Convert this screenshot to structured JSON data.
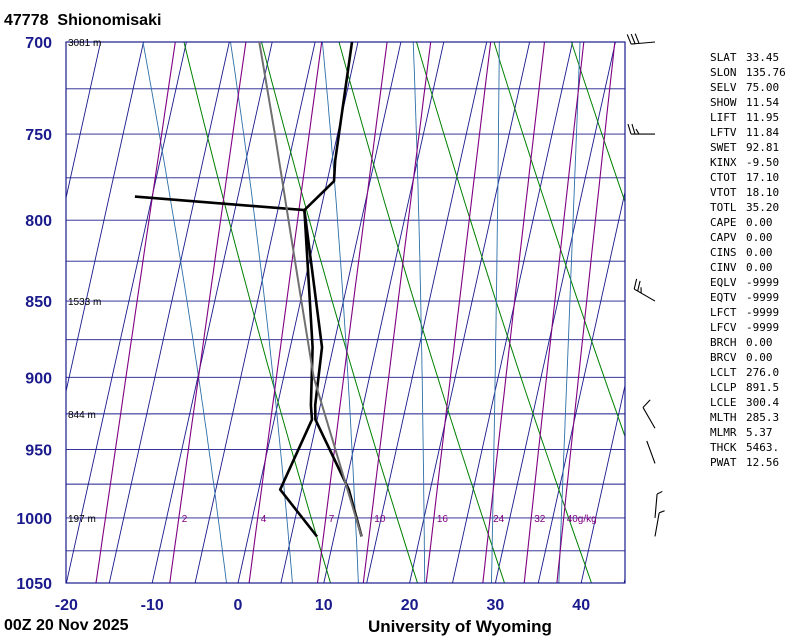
{
  "station": {
    "id": "47778",
    "name": "Shionomisaki"
  },
  "footer": {
    "time": "00Z 20 Nov 2025",
    "source": "University of Wyoming"
  },
  "indices": [
    {
      "name": "SLAT",
      "value": "33.45"
    },
    {
      "name": "SLON",
      "value": "135.76"
    },
    {
      "name": "SELV",
      "value": "75.00"
    },
    {
      "name": "SHOW",
      "value": "11.54"
    },
    {
      "name": "LIFT",
      "value": "11.95"
    },
    {
      "name": "LFTV",
      "value": "11.84"
    },
    {
      "name": "SWET",
      "value": "92.81"
    },
    {
      "name": "KINX",
      "value": "-9.50"
    },
    {
      "name": "CTOT",
      "value": "17.10"
    },
    {
      "name": "VTOT",
      "value": "18.10"
    },
    {
      "name": "TOTL",
      "value": "35.20"
    },
    {
      "name": "CAPE",
      "value": "0.00"
    },
    {
      "name": "CAPV",
      "value": "0.00"
    },
    {
      "name": "CINS",
      "value": "0.00"
    },
    {
      "name": "CINV",
      "value": "0.00"
    },
    {
      "name": "EQLV",
      "value": "-9999"
    },
    {
      "name": "EQTV",
      "value": "-9999"
    },
    {
      "name": "LFCT",
      "value": "-9999"
    },
    {
      "name": "LFCV",
      "value": "-9999"
    },
    {
      "name": "BRCH",
      "value": "0.00"
    },
    {
      "name": "BRCV",
      "value": "0.00"
    },
    {
      "name": "LCLT",
      "value": "276.0"
    },
    {
      "name": "LCLP",
      "value": "891.5"
    },
    {
      "name": "LCLE",
      "value": "300.4"
    },
    {
      "name": "MLTH",
      "value": "285.3"
    },
    {
      "name": "MLMR",
      "value": "5.37"
    },
    {
      "name": "THCK",
      "value": "5463."
    },
    {
      "name": "PWAT",
      "value": "12.56"
    }
  ],
  "chart_data": {
    "type": "line",
    "chart_kind": "skew-T log-p diagram",
    "y_scale": "log (inverted)",
    "pressure_range_hpa": [
      1050,
      700
    ],
    "temperature_range_c": [
      -20,
      45
    ],
    "pressure_ticks": [
      "700",
      "750",
      "800",
      "850",
      "900",
      "950",
      "1000",
      "1050"
    ],
    "temperature_ticks": [
      "-20",
      "-10",
      "0",
      "10",
      "20",
      "30",
      "40"
    ],
    "height_labels": [
      {
        "p": 700,
        "text": "3081 m"
      },
      {
        "p": 850,
        "text": "1533 m"
      },
      {
        "p": 925,
        "text": "844 m"
      },
      {
        "p": 1000,
        "text": "197 m"
      }
    ],
    "mixing_ratio_labels": [
      "2",
      "4",
      "7",
      "10",
      "16",
      "24",
      "32",
      "40g/kg"
    ],
    "mixing_ratio_values": [
      1,
      2,
      4,
      7,
      10,
      16,
      24,
      32,
      40
    ],
    "dry_adiabats_k": [
      280,
      290,
      300,
      310,
      320,
      330,
      340,
      350,
      360,
      370,
      380
    ],
    "moist_adiabats_c": [
      -4,
      4,
      12,
      20,
      28,
      36
    ],
    "colors": {
      "grid": "#1a1a8c",
      "dry_adiabat": "#008000",
      "moist_adiabat": "#2e6fa8",
      "mixing_ratio": "#800080",
      "profile": "#000000",
      "parcel": "#707070"
    },
    "series": [
      {
        "id": "temperature",
        "points": [
          [
            1014,
            13.2
          ],
          [
            979,
            10.5
          ],
          [
            929,
            4.8
          ],
          [
            919,
            4.4
          ],
          [
            880,
            3.7
          ],
          [
            794,
            -1.9
          ],
          [
            777,
            0.8
          ],
          [
            765,
            0.4
          ],
          [
            700,
            -0.7
          ]
        ]
      },
      {
        "id": "dewpoint",
        "points": [
          [
            1014,
            8.0
          ],
          [
            979,
            2.5
          ],
          [
            929,
            4.4
          ],
          [
            919,
            3.9
          ],
          [
            880,
            2.6
          ],
          [
            794,
            -1.9
          ],
          [
            786,
            -22.0
          ]
        ]
      },
      {
        "id": "parcel",
        "points": [
          [
            1014,
            13.2
          ],
          [
            900,
            3.5
          ],
          [
            850,
            0.1
          ],
          [
            800,
            -3.5
          ],
          [
            750,
            -7.3
          ],
          [
            700,
            -11.5
          ]
        ]
      }
    ],
    "wind_barbs": [
      {
        "p": 700,
        "dir": 265,
        "spd": 30
      },
      {
        "p": 750,
        "dir": 270,
        "spd": 25
      },
      {
        "p": 850,
        "dir": 300,
        "spd": 25
      },
      {
        "p": 935,
        "dir": 330,
        "spd": 10
      },
      {
        "p": 960,
        "dir": 340,
        "spd": 0
      },
      {
        "p": 1000,
        "dir": 5,
        "spd": 5
      },
      {
        "p": 1014,
        "dir": 10,
        "spd": 5
      }
    ]
  }
}
